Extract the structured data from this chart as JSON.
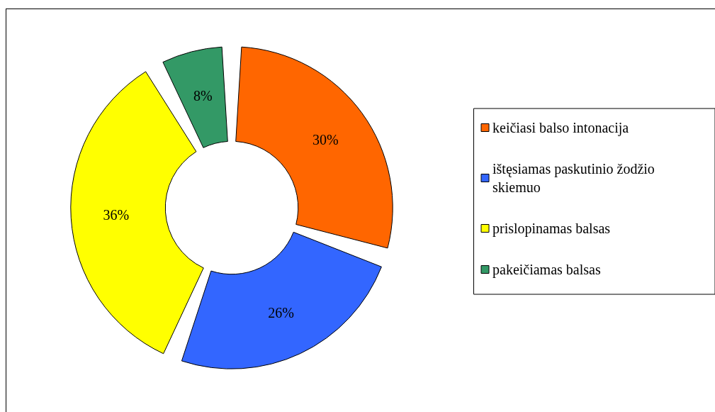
{
  "chart_data": {
    "type": "donut",
    "categories": [
      "keičiasi balso intonacija",
      "ištęsiamas paskutinio žodžio skiemuo",
      "prislopinamas balsas",
      "pakeičiamas balsas"
    ],
    "values": [
      30,
      26,
      36,
      8
    ],
    "colors": [
      "#ff6600",
      "#3366ff",
      "#ffff00",
      "#339966"
    ],
    "value_labels": [
      "30%",
      "26%",
      "36%",
      "8%"
    ],
    "legend": "right"
  }
}
